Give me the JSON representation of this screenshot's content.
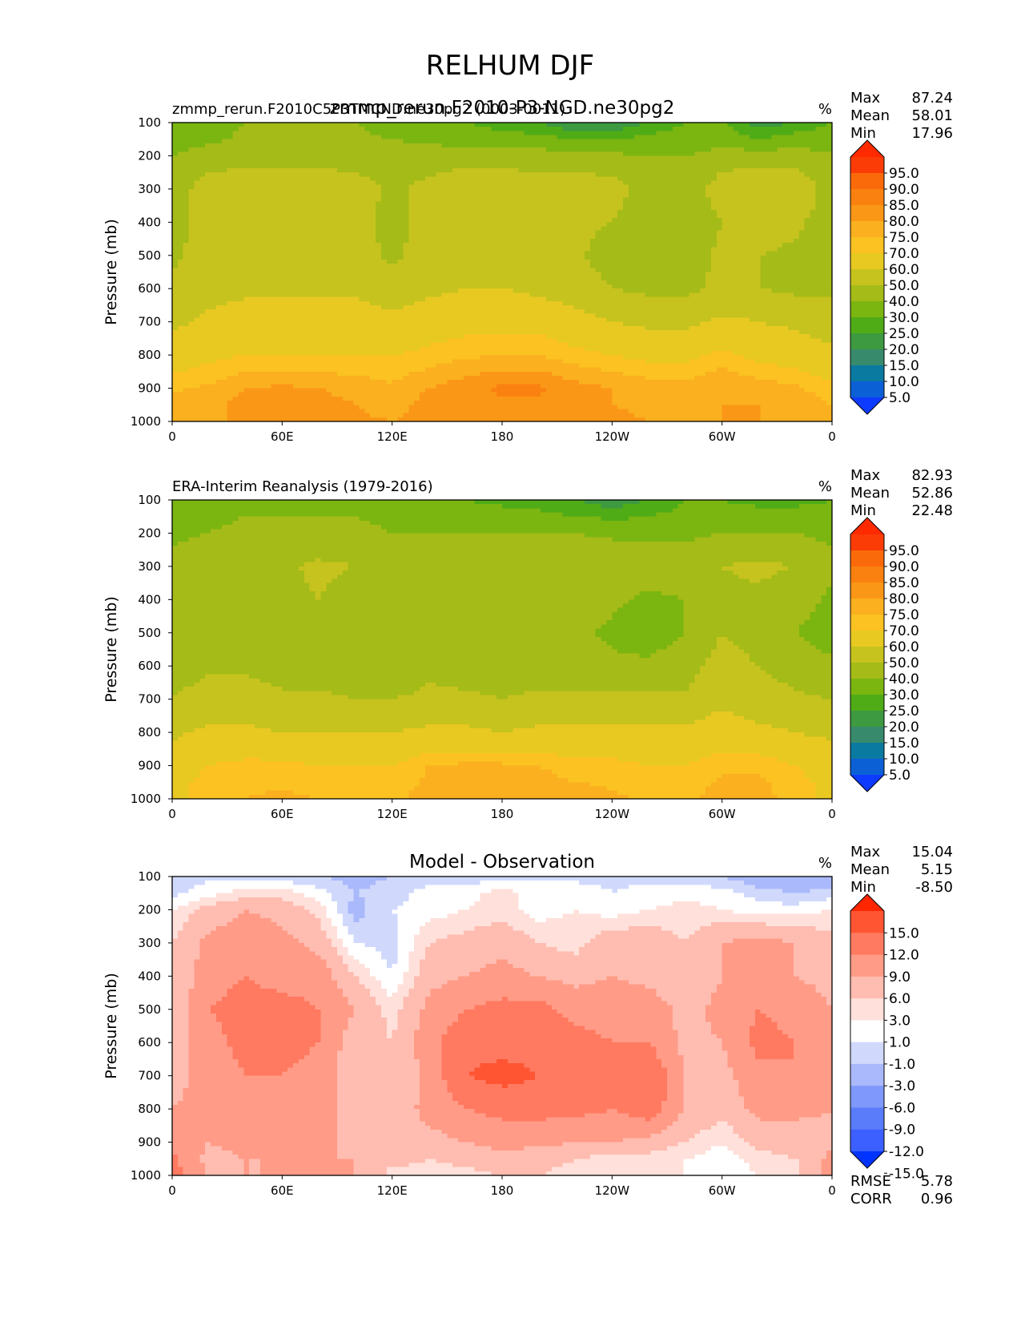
{
  "figure": {
    "title": "RELHUM DJF"
  },
  "palettes": {
    "abs": [
      "#0d3bff",
      "#0c60d6",
      "#0b7aa1",
      "#378b6c",
      "#3d9a40",
      "#4fac17",
      "#7bb510",
      "#a5bb17",
      "#c6c31e",
      "#e8c921",
      "#fbc222",
      "#fbb01f",
      "#fb9717",
      "#fa8110",
      "#fb6a0a",
      "#fb3c07",
      "#ff2a00"
    ],
    "diff": [
      "#0033ff",
      "#3b60ff",
      "#5a7cfb",
      "#7f98fb",
      "#aab9fb",
      "#d0d9fc",
      "#ffffff",
      "#ffe0da",
      "#ffbcb0",
      "#ff9b87",
      "#ff7a60",
      "#ff5533",
      "#ff2600"
    ]
  },
  "chart_data": [
    {
      "type": "heatmap",
      "panel": "model",
      "left_title": "zmmp_rerun.F2010C5P3TMCND.ne30pg2 (0003-0011)",
      "center_title": "zmmp_rerun.F2010-P3-NGD.ne30pg2",
      "units": "%",
      "stats": {
        "max_label": "Max",
        "max": "87.24",
        "mean_label": "Mean",
        "mean": "58.01",
        "min_label": "Min",
        "min": "17.96"
      },
      "ylabel": "Pressure (mb)",
      "x_ticks": [
        "0",
        "60E",
        "120E",
        "180",
        "120W",
        "60W",
        "0"
      ],
      "y_ticks": [
        "100",
        "200",
        "300",
        "400",
        "500",
        "600",
        "700",
        "800",
        "900",
        "1000"
      ],
      "xlim": [
        0,
        360
      ],
      "ylim": [
        100,
        1000
      ],
      "levels": [
        5.0,
        10.0,
        15.0,
        20.0,
        25.0,
        30.0,
        40.0,
        50.0,
        60.0,
        70.0,
        75.0,
        80.0,
        85.0,
        90.0,
        95.0
      ],
      "colorbar_labels": [
        "95.0",
        "90.0",
        "85.0",
        "80.0",
        "75.0",
        "70.0",
        "60.0",
        "50.0",
        "40.0",
        "30.0",
        "25.0",
        "20.0",
        "15.0",
        "10.0",
        "5.0"
      ],
      "palette": "abs",
      "lons": [
        0,
        20,
        40,
        60,
        80,
        100,
        120,
        140,
        160,
        180,
        200,
        220,
        240,
        260,
        280,
        300,
        320,
        340,
        360
      ],
      "pressures": [
        100,
        150,
        200,
        300,
        400,
        500,
        600,
        700,
        800,
        900,
        950,
        1000
      ],
      "values": [
        [
          30,
          35,
          40,
          40,
          40,
          40,
          35,
          33,
          30,
          27,
          25,
          20,
          20,
          25,
          30,
          30,
          22,
          25,
          30
        ],
        [
          35,
          38,
          42,
          42,
          42,
          42,
          40,
          38,
          35,
          33,
          32,
          30,
          30,
          32,
          33,
          35,
          30,
          33,
          35
        ],
        [
          40,
          45,
          45,
          45,
          45,
          45,
          45,
          45,
          45,
          45,
          45,
          45,
          42,
          40,
          40,
          45,
          45,
          45,
          42
        ],
        [
          45,
          55,
          58,
          58,
          58,
          55,
          48,
          53,
          58,
          58,
          55,
          55,
          55,
          45,
          45,
          55,
          60,
          58,
          45
        ],
        [
          45,
          55,
          58,
          58,
          58,
          55,
          45,
          55,
          58,
          58,
          55,
          52,
          50,
          42,
          42,
          50,
          55,
          52,
          45
        ],
        [
          48,
          55,
          58,
          58,
          58,
          55,
          48,
          55,
          58,
          58,
          55,
          52,
          45,
          45,
          45,
          52,
          50,
          48,
          45
        ],
        [
          52,
          56,
          58,
          58,
          58,
          58,
          55,
          58,
          60,
          60,
          58,
          55,
          50,
          48,
          48,
          52,
          50,
          48,
          48
        ],
        [
          58,
          62,
          65,
          65,
          65,
          65,
          62,
          65,
          67,
          67,
          67,
          64,
          60,
          58,
          58,
          62,
          60,
          58,
          55
        ],
        [
          65,
          68,
          70,
          70,
          70,
          70,
          70,
          72,
          74,
          75,
          75,
          72,
          70,
          68,
          68,
          72,
          68,
          66,
          62
        ],
        [
          74,
          76,
          80,
          81,
          80,
          78,
          76,
          80,
          83,
          86,
          86,
          82,
          80,
          78,
          77,
          80,
          78,
          76,
          72
        ],
        [
          77,
          78,
          82,
          83,
          82,
          80,
          78,
          82,
          83,
          84,
          84,
          82,
          80,
          79,
          78,
          80,
          80,
          78,
          75
        ],
        [
          78,
          78,
          82,
          84,
          83,
          81,
          80,
          82,
          82,
          83,
          83,
          82,
          81,
          80,
          78,
          80,
          80,
          78,
          76
        ]
      ]
    },
    {
      "type": "heatmap",
      "panel": "observation",
      "left_title": "ERA-Interim Reanalysis (1979-2016)",
      "center_title": "",
      "units": "%",
      "stats": {
        "max_label": "Max",
        "max": "82.93",
        "mean_label": "Mean",
        "mean": "52.86",
        "min_label": "Min",
        "min": "22.48"
      },
      "ylabel": "Pressure (mb)",
      "x_ticks": [
        "0",
        "60E",
        "120E",
        "180",
        "120W",
        "60W",
        "0"
      ],
      "y_ticks": [
        "100",
        "200",
        "300",
        "400",
        "500",
        "600",
        "700",
        "800",
        "900",
        "1000"
      ],
      "xlim": [
        0,
        360
      ],
      "ylim": [
        100,
        1000
      ],
      "levels": [
        5.0,
        10.0,
        15.0,
        20.0,
        25.0,
        30.0,
        40.0,
        50.0,
        60.0,
        70.0,
        75.0,
        80.0,
        85.0,
        90.0,
        95.0
      ],
      "colorbar_labels": [
        "95.0",
        "90.0",
        "85.0",
        "80.0",
        "75.0",
        "70.0",
        "60.0",
        "50.0",
        "40.0",
        "30.0",
        "25.0",
        "20.0",
        "15.0",
        "10.0",
        "5.0"
      ],
      "palette": "abs",
      "lons": [
        0,
        20,
        40,
        60,
        80,
        100,
        120,
        140,
        160,
        180,
        200,
        220,
        240,
        260,
        280,
        300,
        320,
        340,
        360
      ],
      "pressures": [
        100,
        150,
        200,
        300,
        400,
        500,
        600,
        700,
        800,
        900,
        950,
        1000
      ],
      "values": [
        [
          30,
          33,
          38,
          38,
          38,
          38,
          35,
          33,
          30,
          28,
          27,
          25,
          22,
          25,
          30,
          30,
          28,
          28,
          30
        ],
        [
          35,
          38,
          40,
          40,
          40,
          40,
          38,
          36,
          35,
          33,
          32,
          30,
          28,
          30,
          32,
          33,
          33,
          33,
          33
        ],
        [
          38,
          40,
          42,
          42,
          42,
          42,
          40,
          40,
          40,
          40,
          40,
          40,
          38,
          38,
          38,
          40,
          40,
          40,
          38
        ],
        [
          42,
          50,
          44,
          48,
          52,
          50,
          45,
          48,
          48,
          45,
          48,
          50,
          48,
          45,
          45,
          50,
          52,
          50,
          42
        ],
        [
          42,
          45,
          42,
          48,
          50,
          45,
          42,
          48,
          45,
          42,
          45,
          45,
          42,
          38,
          40,
          48,
          48,
          45,
          38
        ],
        [
          42,
          42,
          42,
          45,
          45,
          42,
          42,
          48,
          45,
          42,
          42,
          42,
          38,
          35,
          40,
          50,
          45,
          40,
          35
        ],
        [
          45,
          48,
          48,
          45,
          45,
          42,
          42,
          48,
          45,
          45,
          45,
          45,
          42,
          42,
          45,
          55,
          50,
          45,
          42
        ],
        [
          50,
          55,
          55,
          52,
          52,
          50,
          50,
          52,
          52,
          50,
          52,
          52,
          52,
          52,
          52,
          58,
          55,
          52,
          50
        ],
        [
          58,
          62,
          62,
          60,
          60,
          60,
          60,
          62,
          62,
          60,
          62,
          62,
          62,
          62,
          62,
          65,
          62,
          60,
          58
        ],
        [
          66,
          70,
          72,
          72,
          70,
          70,
          70,
          75,
          76,
          76,
          75,
          72,
          72,
          70,
          70,
          74,
          74,
          70,
          66
        ],
        [
          68,
          72,
          74,
          74,
          73,
          72,
          72,
          76,
          78,
          78,
          77,
          75,
          74,
          72,
          72,
          76,
          76,
          72,
          68
        ],
        [
          68,
          72,
          75,
          76,
          75,
          74,
          74,
          77,
          79,
          80,
          80,
          78,
          76,
          74,
          74,
          77,
          77,
          73,
          68
        ]
      ]
    },
    {
      "type": "heatmap",
      "panel": "difference",
      "left_title": "",
      "center_title": "Model - Observation",
      "units": "%",
      "stats": {
        "max_label": "Max",
        "max": "15.04",
        "mean_label": "Mean",
        "mean": "5.15",
        "min_label": "Min",
        "min": "-8.50"
      },
      "rmse_label": "RMSE",
      "rmse": "5.78",
      "corr_label": "CORR",
      "corr": "0.96",
      "ylabel": "Pressure (mb)",
      "x_ticks": [
        "0",
        "60E",
        "120E",
        "180",
        "120W",
        "60W",
        "0"
      ],
      "y_ticks": [
        "100",
        "200",
        "300",
        "400",
        "500",
        "600",
        "700",
        "800",
        "900",
        "1000"
      ],
      "xlim": [
        0,
        360
      ],
      "ylim": [
        100,
        1000
      ],
      "levels": [
        -15.0,
        -12.0,
        -9.0,
        -6.0,
        -3.0,
        -1.0,
        1.0,
        3.0,
        6.0,
        9.0,
        12.0,
        15.0
      ],
      "colorbar_labels": [
        "15.0",
        "12.0",
        "9.0",
        "6.0",
        "3.0",
        "1.0",
        "-1.0",
        "-3.0",
        "-6.0",
        "-9.0",
        "-12.0",
        "-15.0"
      ],
      "palette": "diff",
      "lons": [
        0,
        20,
        40,
        60,
        80,
        100,
        120,
        140,
        160,
        180,
        200,
        220,
        240,
        260,
        280,
        300,
        320,
        340,
        360
      ],
      "pressures": [
        100,
        150,
        200,
        300,
        400,
        500,
        600,
        700,
        800,
        900,
        950,
        1000
      ],
      "values": [
        [
          -2,
          -1.5,
          -1.5,
          -2,
          -3,
          -4,
          -3,
          -2,
          -2,
          -2,
          -1.5,
          -1.5,
          -1.5,
          -2,
          -2,
          -3,
          -5,
          -6,
          -5
        ],
        [
          -1.5,
          0,
          2,
          2,
          0,
          -3,
          -2,
          0,
          0,
          2,
          0,
          0,
          -1,
          0,
          0,
          0,
          -2,
          -3,
          -2
        ],
        [
          1,
          4,
          6,
          5,
          2,
          -4,
          -1,
          0,
          1,
          2,
          0,
          1,
          0,
          1,
          2,
          1,
          0,
          0,
          1
        ],
        [
          3,
          7,
          8,
          7,
          5,
          -1,
          -2,
          3,
          4,
          5,
          3,
          2,
          5,
          5,
          3,
          6,
          7,
          6,
          4
        ],
        [
          3,
          8,
          9,
          8,
          8,
          3,
          -1,
          5,
          6,
          7,
          6,
          5,
          6,
          5,
          3,
          6,
          7,
          6,
          5
        ],
        [
          4,
          9,
          10,
          10,
          9,
          6,
          2,
          7,
          9,
          10,
          10,
          8,
          8,
          8,
          5,
          7,
          9,
          8,
          6
        ],
        [
          4,
          8,
          10,
          10,
          9,
          4,
          3,
          8,
          11,
          11,
          11,
          10,
          9,
          9,
          5,
          6,
          10,
          9,
          7
        ],
        [
          5,
          7,
          9,
          9,
          8,
          4,
          3,
          7,
          12,
          13,
          12,
          11,
          10,
          12,
          6,
          5,
          8,
          9,
          7
        ],
        [
          6,
          7,
          8,
          8,
          8,
          4,
          4,
          7,
          9,
          10,
          10,
          10,
          9,
          11,
          6,
          4,
          7,
          7,
          6
        ],
        [
          8,
          6,
          7,
          7,
          7,
          5,
          5,
          5,
          6,
          7,
          7,
          6,
          6,
          5,
          3,
          1,
          4,
          4,
          5
        ],
        [
          10,
          5,
          6,
          6,
          6,
          6,
          4,
          3,
          4,
          5,
          4,
          3,
          2,
          2,
          1,
          0,
          2,
          3,
          7
        ],
        [
          10,
          6,
          6,
          6,
          6,
          6,
          2,
          2,
          2,
          3,
          3,
          2,
          1,
          2,
          1,
          -1,
          1,
          2,
          8
        ]
      ]
    }
  ]
}
